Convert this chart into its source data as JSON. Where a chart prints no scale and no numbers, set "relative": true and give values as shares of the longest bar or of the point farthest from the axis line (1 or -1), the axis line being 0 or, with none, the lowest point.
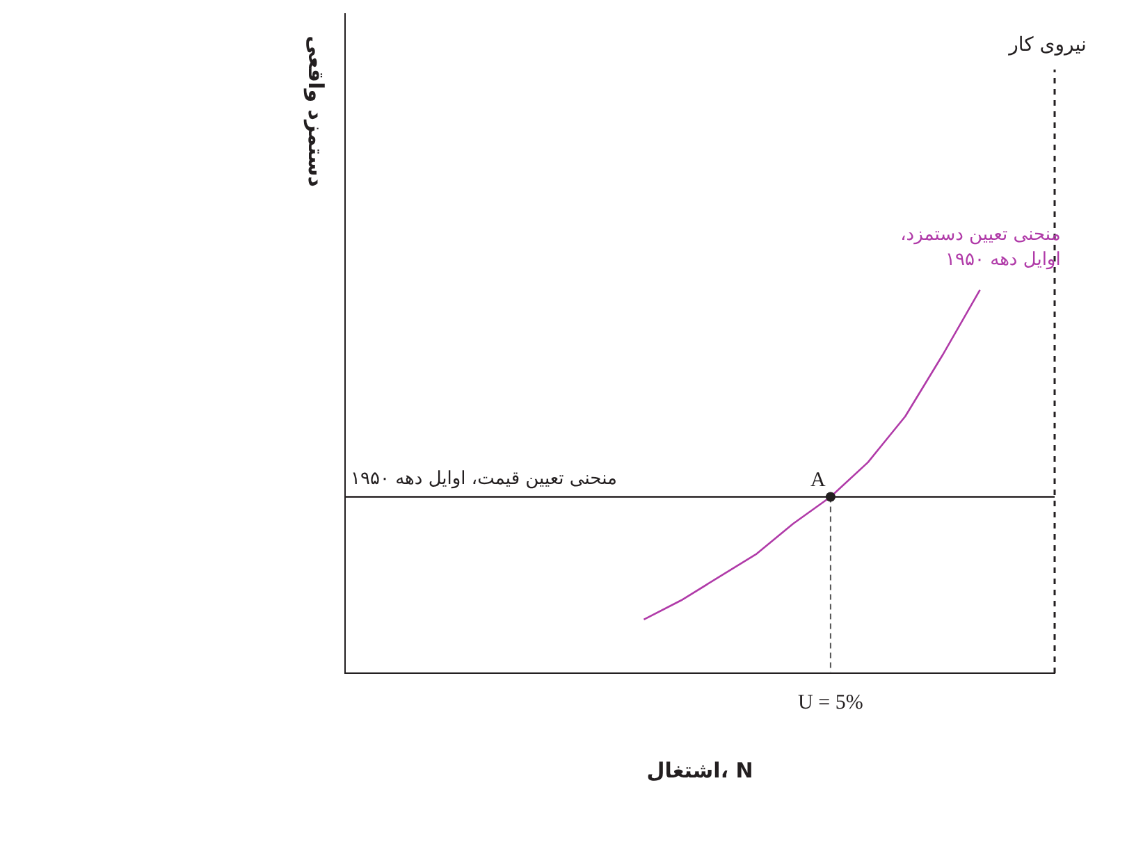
{
  "chart_data": {
    "type": "line",
    "relative": true,
    "xlabel": "اشتغال، N",
    "ylabel": "دستمزد واقعی",
    "categories": [
      null,
      null,
      null,
      null,
      null,
      null,
      null,
      null,
      null,
      null,
      null,
      null,
      null,
      null,
      null,
      null,
      null,
      null,
      null,
      null
    ],
    "series": [
      {
        "name": "منحنی تعیین قیمت، اوایل دهه ۱۹۵۰",
        "color": "#231f20",
        "values": [
          0.46,
          0.46,
          0.46,
          0.46,
          0.46,
          0.46,
          0.46,
          0.46,
          0.46,
          0.46,
          0.46,
          0.46,
          0.46,
          0.46,
          0.46,
          0.46,
          0.46,
          0.46,
          0.46,
          0.46
        ]
      },
      {
        "name": "منحنی تعیین دستمزد، اوایل دهه ۱۹۵۰",
        "color": "#b03aa8",
        "values": [
          null,
          null,
          null,
          null,
          null,
          null,
          null,
          null,
          0.14,
          0.19,
          0.25,
          0.31,
          0.39,
          0.46,
          0.55,
          0.67,
          0.83,
          1.0,
          null,
          null
        ]
      }
    ],
    "ref_lines": [
      {
        "axis": "x",
        "label": "نیروی کار",
        "line_style": "dashed",
        "color": "#231f20"
      }
    ],
    "annotations": [
      {
        "text": "A",
        "y": 0.46
      },
      "U = 5%"
    ],
    "grid": false,
    "legend": false,
    "tick_labels": "x",
    "marker": "none",
    "line_style": "solid"
  }
}
